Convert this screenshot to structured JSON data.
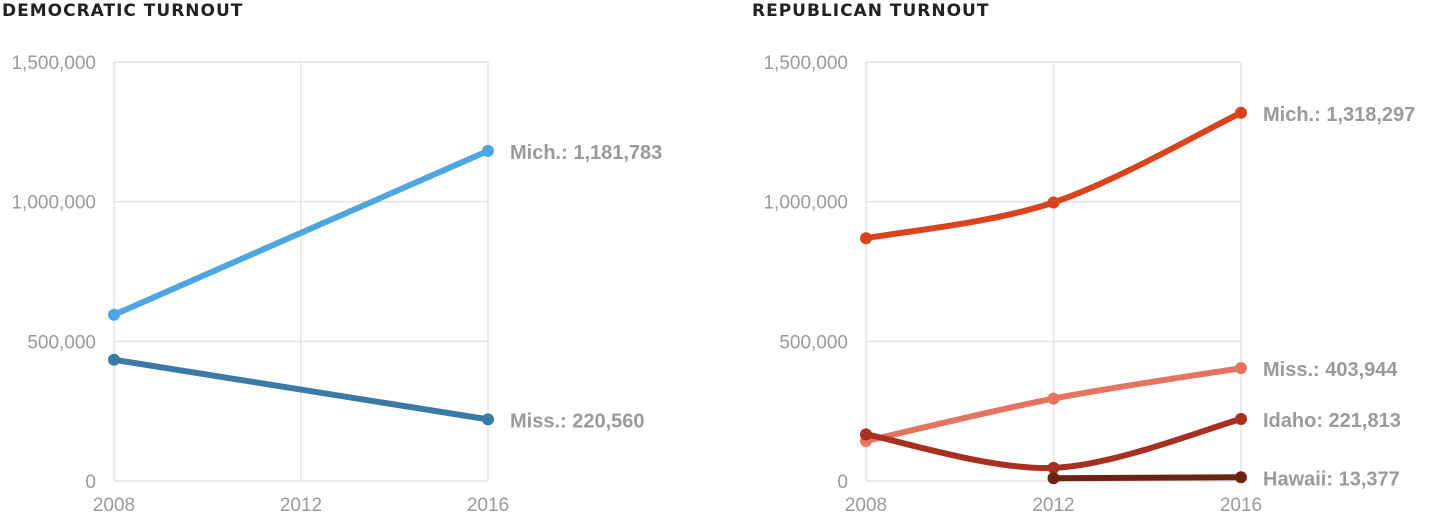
{
  "chart_data": [
    {
      "type": "line",
      "title": "DEMOCRATIC TURNOUT",
      "x": [
        "2008",
        "2012",
        "2016"
      ],
      "ylim": [
        0,
        1500000
      ],
      "yticks": [
        "0",
        "500,000",
        "1,000,000",
        "1,500,000"
      ],
      "ytick_values": [
        0,
        500000,
        1000000,
        1500000
      ],
      "grid": true,
      "series": [
        {
          "name": "Mich.",
          "label": "Mich.: 1,181,783",
          "color": "#4da6e0",
          "curve": "linear",
          "points": [
            {
              "x": "2008",
              "y": 595000
            },
            {
              "x": "2016",
              "y": 1181783
            }
          ]
        },
        {
          "name": "Miss.",
          "label": "Miss.: 220,560",
          "color": "#3b7aa6",
          "curve": "linear",
          "points": [
            {
              "x": "2008",
              "y": 434000
            },
            {
              "x": "2016",
              "y": 220560
            }
          ]
        }
      ]
    },
    {
      "type": "line",
      "title": "REPUBLICAN TURNOUT",
      "x": [
        "2008",
        "2012",
        "2016"
      ],
      "ylim": [
        0,
        1500000
      ],
      "yticks": [
        "0",
        "500,000",
        "1,000,000",
        "1,500,000"
      ],
      "ytick_values": [
        0,
        500000,
        1000000,
        1500000
      ],
      "grid": true,
      "series": [
        {
          "name": "Mich.",
          "label": "Mich.: 1,318,297",
          "color": "#d9431e",
          "curve": "smooth",
          "points": [
            {
              "x": "2008",
              "y": 869000
            },
            {
              "x": "2012",
              "y": 997000
            },
            {
              "x": "2016",
              "y": 1318297
            }
          ]
        },
        {
          "name": "Miss.",
          "label": "Miss.: 403,944",
          "color": "#e5735f",
          "curve": "smooth",
          "points": [
            {
              "x": "2008",
              "y": 143000
            },
            {
              "x": "2012",
              "y": 295000
            },
            {
              "x": "2016",
              "y": 403944
            }
          ]
        },
        {
          "name": "Idaho",
          "label": "Idaho: 221,813",
          "color": "#a83020",
          "curve": "smooth",
          "points": [
            {
              "x": "2008",
              "y": 167000
            },
            {
              "x": "2012",
              "y": 47000
            },
            {
              "x": "2016",
              "y": 221813
            }
          ]
        },
        {
          "name": "Hawaii",
          "label": "Hawaii: 13,377",
          "color": "#6e2312",
          "curve": "smooth",
          "points": [
            {
              "x": "2012",
              "y": 10000
            },
            {
              "x": "2016",
              "y": 13377
            }
          ]
        }
      ]
    }
  ]
}
